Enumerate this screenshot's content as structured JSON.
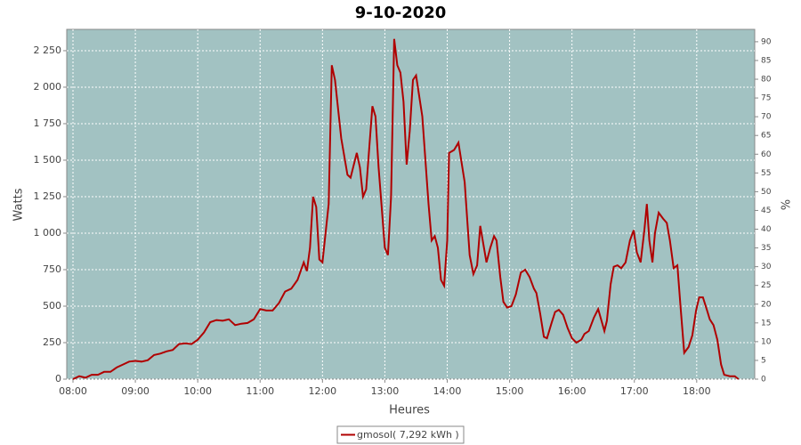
{
  "chart_data": {
    "type": "line",
    "title": "9-10-2020",
    "xlabel": "Heures",
    "ylabel": "Watts",
    "y2label": "%",
    "x": [
      8.0,
      8.1,
      8.2,
      8.3,
      8.4,
      8.5,
      8.6,
      8.7,
      8.8,
      8.9,
      9.0,
      9.1,
      9.2,
      9.3,
      9.4,
      9.5,
      9.6,
      9.7,
      9.8,
      9.9,
      10.0,
      10.1,
      10.2,
      10.3,
      10.4,
      10.5,
      10.6,
      10.7,
      10.8,
      10.9,
      11.0,
      11.1,
      11.2,
      11.3,
      11.4,
      11.5,
      11.6,
      11.7,
      11.75,
      11.8,
      11.85,
      11.9,
      11.95,
      12.0,
      12.1,
      12.15,
      12.2,
      12.3,
      12.4,
      12.45,
      12.55,
      12.6,
      12.65,
      12.7,
      12.8,
      12.85,
      12.9,
      13.0,
      13.05,
      13.1,
      13.15,
      13.2,
      13.25,
      13.3,
      13.35,
      13.4,
      13.45,
      13.5,
      13.6,
      13.7,
      13.75,
      13.8,
      13.85,
      13.9,
      13.95,
      14.0,
      14.03,
      14.11,
      14.18,
      14.28,
      14.36,
      14.42,
      14.48,
      14.53,
      14.59,
      14.63,
      14.69,
      14.75,
      14.79,
      14.85,
      14.9,
      14.96,
      15.03,
      15.1,
      15.18,
      15.25,
      15.32,
      15.39,
      15.43,
      15.49,
      15.55,
      15.6,
      15.67,
      15.73,
      15.79,
      15.86,
      15.93,
      16.0,
      16.07,
      16.15,
      16.2,
      16.27,
      16.35,
      16.42,
      16.46,
      16.52,
      16.56,
      16.62,
      16.67,
      16.73,
      16.79,
      16.86,
      16.93,
      16.99,
      17.04,
      17.1,
      17.16,
      17.2,
      17.24,
      17.29,
      17.33,
      17.39,
      17.46,
      17.52,
      17.57,
      17.63,
      17.69,
      17.74,
      17.8,
      17.87,
      17.93,
      17.99,
      18.04,
      18.1,
      18.16,
      18.21,
      18.27,
      18.33,
      18.39,
      18.44,
      18.53,
      18.61,
      18.67
    ],
    "series": [
      {
        "name": "gmosol( 7,292 kWh )",
        "color": "#b00000",
        "values": [
          0,
          20,
          10,
          30,
          30,
          50,
          50,
          80,
          100,
          120,
          125,
          120,
          130,
          165,
          175,
          190,
          200,
          240,
          245,
          240,
          270,
          320,
          390,
          405,
          400,
          410,
          370,
          380,
          385,
          410,
          480,
          470,
          470,
          520,
          600,
          620,
          680,
          800,
          740,
          900,
          1250,
          1180,
          820,
          800,
          1200,
          2150,
          2050,
          1650,
          1400,
          1380,
          1550,
          1450,
          1250,
          1300,
          1870,
          1800,
          1450,
          900,
          850,
          1250,
          2330,
          2150,
          2100,
          1900,
          1470,
          1700,
          2050,
          2080,
          1800,
          1200,
          950,
          980,
          900,
          680,
          640,
          950,
          1550,
          1570,
          1620,
          1350,
          850,
          720,
          780,
          1050,
          900,
          800,
          900,
          980,
          950,
          700,
          530,
          490,
          500,
          580,
          730,
          750,
          700,
          620,
          590,
          450,
          290,
          280,
          380,
          460,
          475,
          440,
          350,
          280,
          250,
          270,
          310,
          330,
          420,
          480,
          420,
          330,
          400,
          650,
          770,
          780,
          760,
          800,
          950,
          1020,
          870,
          800,
          1020,
          1200,
          950,
          800,
          1000,
          1140,
          1100,
          1070,
          950,
          760,
          780,
          500,
          180,
          220,
          300,
          470,
          560,
          560,
          480,
          410,
          370,
          270,
          100,
          30,
          20,
          20,
          0
        ]
      }
    ],
    "xlim": [
      7.9,
      18.93
    ],
    "xticks": [
      {
        "value": 8,
        "label": "08:00"
      },
      {
        "value": 9,
        "label": "09:00"
      },
      {
        "value": 10,
        "label": "10:00"
      },
      {
        "value": 11,
        "label": "11:00"
      },
      {
        "value": 12,
        "label": "12:00"
      },
      {
        "value": 13,
        "label": "13:00"
      },
      {
        "value": 14,
        "label": "14:00"
      },
      {
        "value": 15,
        "label": "15:00"
      },
      {
        "value": 16,
        "label": "16:00"
      },
      {
        "value": 17,
        "label": "17:00"
      },
      {
        "value": 18,
        "label": "18:00"
      }
    ],
    "ylim": [
      0,
      2396
    ],
    "yticks": [
      0,
      250,
      500,
      750,
      {
        "value": 1000,
        "label": "1 000"
      },
      {
        "value": 1250,
        "label": "1 250"
      },
      {
        "value": 1500,
        "label": "1 500"
      },
      {
        "value": 1750,
        "label": "1 750"
      },
      {
        "value": 2000,
        "label": "2 000"
      },
      {
        "value": 2250,
        "label": "2 250"
      }
    ],
    "y2lim": [
      0,
      93.3
    ],
    "y2ticks": [
      0,
      5,
      10,
      15,
      20,
      25,
      30,
      35,
      40,
      45,
      50,
      55,
      60,
      65,
      70,
      75,
      80,
      85,
      90
    ],
    "grid": true,
    "plot_background": "#a2c2c2"
  }
}
